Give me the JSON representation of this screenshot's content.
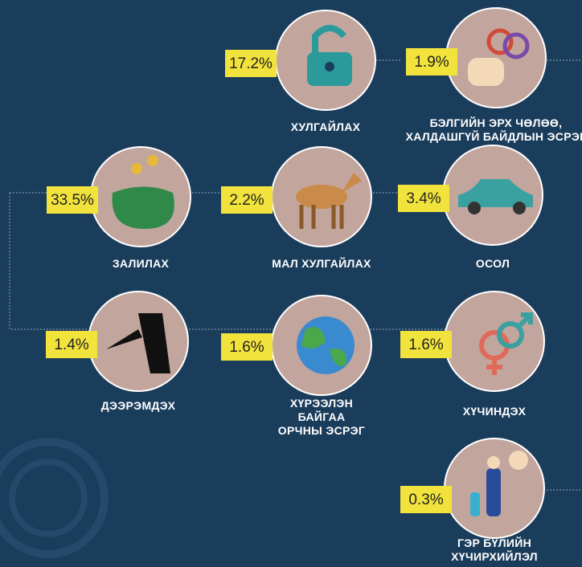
{
  "items": [
    {
      "percent": "17.2%",
      "label": [
        "ХУЛГАЙЛАХ"
      ]
    },
    {
      "percent": "1.9%",
      "label": [
        "БЭЛГИЙН ЭРХ ЧӨЛӨӨ,",
        "ХАЛДАШГҮЙ БАЙДЛЫН ЭСРЭГ"
      ]
    },
    {
      "percent": "33.5%",
      "label": [
        "ЗАЛИЛАХ"
      ]
    },
    {
      "percent": "2.2%",
      "label": [
        "МАЛ ХУЛГАЙЛАХ"
      ]
    },
    {
      "percent": "3.4%",
      "label": [
        "ОСОЛ"
      ]
    },
    {
      "percent": "1.4%",
      "label": [
        "ДЭЭРЭМДЭХ"
      ]
    },
    {
      "percent": "1.6%",
      "label": [
        "ХҮРЭЭЛЭН",
        "БАЙГАА",
        "ОРЧНЫ ЭСРЭГ"
      ]
    },
    {
      "percent": "1.6%",
      "label": [
        "ХҮЧИНДЭХ"
      ]
    },
    {
      "percent": "0.3%",
      "label": [
        "ГЭР БҮЛИЙН",
        "ХҮЧИРХИЙЛЭЛ"
      ]
    }
  ]
}
